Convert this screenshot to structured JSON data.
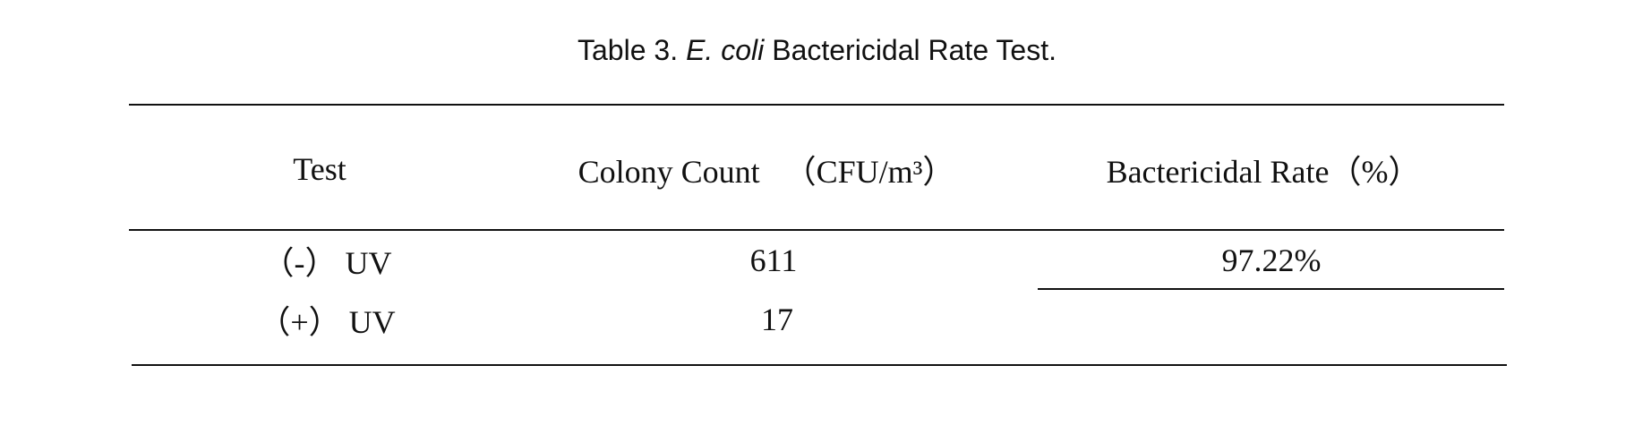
{
  "title": {
    "label": "Table 3.",
    "species": "E. coli",
    "text": "Bactericidal Rate Test."
  },
  "table": {
    "header": [
      "Test",
      "Colony Count 　（CFU/m³）",
      "Bactericidal Rate（%）"
    ],
    "rows": [
      {
        "test": "（-） UV",
        "count": 611
      },
      {
        "test": "（+） UV",
        "count": 17
      }
    ],
    "rate": "97.22%"
  }
}
